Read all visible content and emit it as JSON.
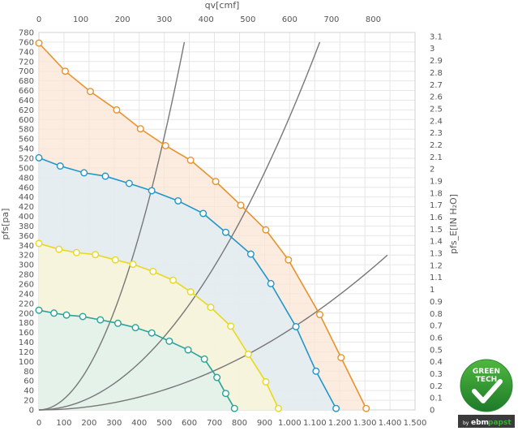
{
  "chart_data": {
    "type": "line",
    "title": "",
    "x_bottom": {
      "label": "",
      "range": [
        0,
        1500
      ],
      "ticks": [
        0,
        100,
        200,
        300,
        400,
        500,
        600,
        700,
        800,
        900,
        1000,
        1100,
        1200,
        1300,
        1400,
        1500
      ],
      "tick_labels": [
        "0",
        "100",
        "200",
        "300",
        "400",
        "500",
        "600",
        "700",
        "800",
        "900",
        "1.000",
        "1.100",
        "1.200",
        "1.300",
        "1.400",
        "1.500"
      ]
    },
    "x_top": {
      "label": "qv[cmf]",
      "ticks": [
        0,
        100,
        200,
        300,
        400,
        500,
        600,
        700,
        800
      ],
      "tick_labels": [
        "0",
        "100",
        "200",
        "300",
        "400",
        "500",
        "600",
        "700",
        "800"
      ]
    },
    "y_left": {
      "label": "pfs[pa]",
      "range": [
        0,
        780
      ],
      "ticks": [
        0,
        20,
        40,
        60,
        80,
        100,
        120,
        140,
        160,
        180,
        200,
        220,
        240,
        260,
        280,
        300,
        320,
        340,
        360,
        380,
        400,
        420,
        440,
        460,
        480,
        500,
        520,
        540,
        560,
        580,
        600,
        620,
        640,
        660,
        680,
        700,
        720,
        740,
        760,
        780
      ]
    },
    "y_right": {
      "label": "pfs_E[IN H₂O]",
      "ticks": [
        0,
        0.1,
        0.2,
        0.3,
        0.4,
        0.5,
        0.6,
        0.7,
        0.8,
        0.9,
        1,
        1.1,
        1.2,
        1.3,
        1.4,
        1.5,
        1.6,
        1.7,
        1.8,
        1.9,
        2,
        2.1,
        2.2,
        2.3,
        2.4,
        2.5,
        2.6,
        2.7,
        2.8,
        2.9,
        3,
        3.1
      ]
    },
    "grid": true,
    "series": [
      {
        "color": "#E8922E",
        "fill": "#FBE6D4",
        "points": [
          [
            0,
            758
          ],
          [
            105,
            700
          ],
          [
            205,
            658
          ],
          [
            310,
            620
          ],
          [
            405,
            581
          ],
          [
            505,
            546
          ],
          [
            605,
            516
          ],
          [
            705,
            472
          ],
          [
            805,
            423
          ],
          [
            905,
            372
          ],
          [
            995,
            310
          ],
          [
            1120,
            197
          ],
          [
            1205,
            108
          ],
          [
            1305,
            3
          ]
        ]
      },
      {
        "color": "#2196C9",
        "fill": "#DDEEF7",
        "points": [
          [
            0,
            521
          ],
          [
            85,
            504
          ],
          [
            180,
            490
          ],
          [
            265,
            483
          ],
          [
            360,
            468
          ],
          [
            450,
            453
          ],
          [
            555,
            432
          ],
          [
            655,
            406
          ],
          [
            745,
            367
          ],
          [
            845,
            322
          ],
          [
            925,
            261
          ],
          [
            1025,
            172
          ],
          [
            1105,
            80
          ],
          [
            1185,
            3
          ]
        ]
      },
      {
        "color": "#E8D81E",
        "fill": "#FBF6D4",
        "points": [
          [
            0,
            344
          ],
          [
            80,
            332
          ],
          [
            150,
            325
          ],
          [
            225,
            321
          ],
          [
            305,
            310
          ],
          [
            375,
            301
          ],
          [
            455,
            286
          ],
          [
            535,
            268
          ],
          [
            605,
            244
          ],
          [
            685,
            212
          ],
          [
            765,
            173
          ],
          [
            835,
            115
          ],
          [
            905,
            58
          ],
          [
            955,
            3
          ]
        ]
      },
      {
        "color": "#2AA39A",
        "fill": "#DDF1EE",
        "points": [
          [
            0,
            206
          ],
          [
            60,
            200
          ],
          [
            110,
            196
          ],
          [
            175,
            193
          ],
          [
            245,
            186
          ],
          [
            315,
            179
          ],
          [
            385,
            170
          ],
          [
            450,
            159
          ],
          [
            520,
            142
          ],
          [
            595,
            124
          ],
          [
            660,
            105
          ],
          [
            710,
            67
          ],
          [
            745,
            34
          ],
          [
            780,
            3
          ]
        ]
      }
    ],
    "system_curves": [
      {
        "color": "#777777",
        "x_end": 580,
        "y_end": 760
      },
      {
        "color": "#777777",
        "x_end": 1120,
        "y_end": 760
      },
      {
        "color": "#777777",
        "x_end": 1390,
        "y_end": 320
      }
    ]
  },
  "logo": {
    "line1": "GREEN",
    "line2": "TECH",
    "by": "by",
    "brand_a": "ebm",
    "brand_b": "papst"
  }
}
